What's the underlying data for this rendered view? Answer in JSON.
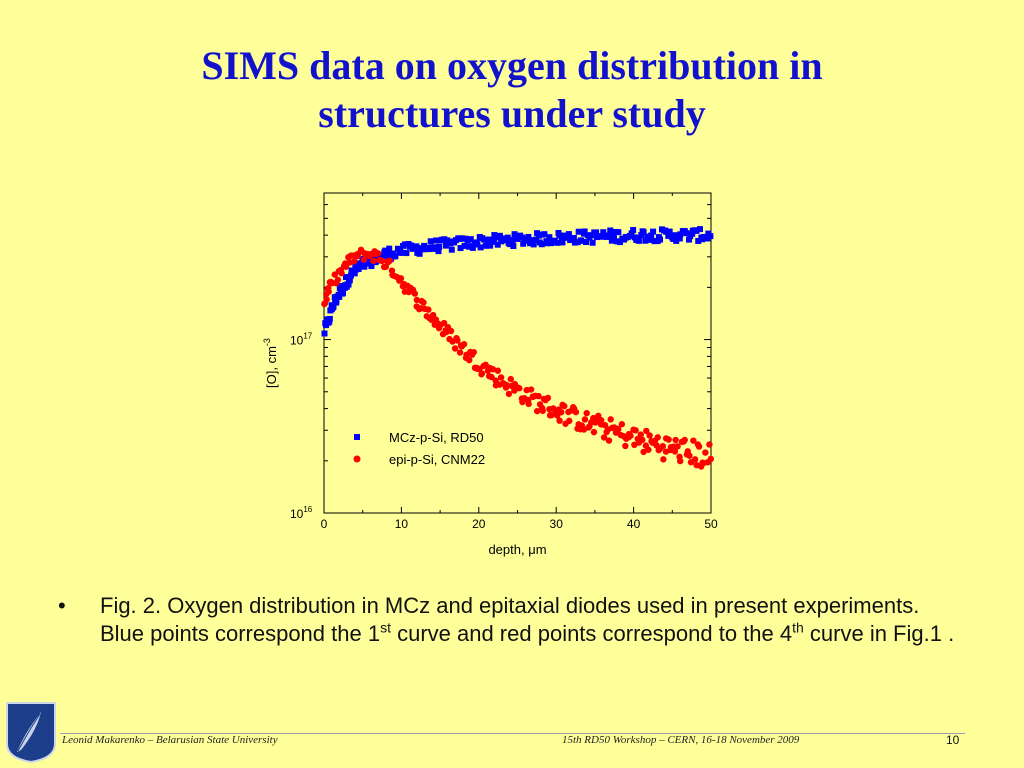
{
  "slide": {
    "title_line1": "SIMS data on oxygen distribution in",
    "title_line2": "structures under study",
    "bullet_symbol": "•",
    "bullet_parts": {
      "p1": "Fig. 2. Oxygen distribution in MCz and epitaxial diodes used in present experiments. Blue points correspond the 1",
      "sup1": "st",
      "p2": " curve and red points correspond to the 4",
      "sup2": "th",
      "p3": " curve in Fig.1 ."
    },
    "footer_left": "Leonid Makarenko – Belarusian State University",
    "footer_center": "15th RD50 Workshop – CERN, 16-18 November 2009",
    "page_number": "10"
  },
  "colors": {
    "background": "#ffff99",
    "title": "#1212cc",
    "series_blue": "#0000ff",
    "series_red": "#ff0000"
  },
  "chart_data": {
    "type": "scatter",
    "title": "",
    "xlabel": "depth, μm",
    "ylabel": "[O], cm-3",
    "xlim": [
      0,
      50
    ],
    "ylim": [
      1e+16,
      7e+17
    ],
    "y_scale": "log",
    "x_ticks": [
      "0",
      "10",
      "20",
      "30",
      "40",
      "50"
    ],
    "y_tick_labels": [
      {
        "value": 1e+17,
        "base": "10",
        "exp": "17"
      },
      {
        "value": 1e+16,
        "base": "10",
        "exp": "16"
      }
    ],
    "legend_position": "lower-center",
    "series": [
      {
        "name": "MCz-p-Si, RD50",
        "marker": "square",
        "color": "#0000ff",
        "points": [
          [
            0,
            1.1e+17
          ],
          [
            0.5,
            1.25e+17
          ],
          [
            1,
            1.5e+17
          ],
          [
            1.5,
            1.7e+17
          ],
          [
            2,
            1.85e+17
          ],
          [
            2.5,
            2e+17
          ],
          [
            3,
            2.2e+17
          ],
          [
            3.5,
            2.35e+17
          ],
          [
            4,
            2.5e+17
          ],
          [
            4.5,
            2.6e+17
          ],
          [
            5,
            2.7e+17
          ],
          [
            5.5,
            2.8e+17
          ],
          [
            6,
            2.85e+17
          ],
          [
            6.5,
            2.95e+17
          ],
          [
            7,
            3e+17
          ],
          [
            8,
            3.1e+17
          ],
          [
            9,
            3.2e+17
          ],
          [
            10,
            3.25e+17
          ],
          [
            11,
            3.3e+17
          ],
          [
            12,
            3.35e+17
          ],
          [
            13,
            3.4e+17
          ],
          [
            14,
            3.45e+17
          ],
          [
            15,
            3.5e+17
          ],
          [
            16,
            3.5e+17
          ],
          [
            17,
            3.55e+17
          ],
          [
            18,
            3.6e+17
          ],
          [
            19,
            3.6e+17
          ],
          [
            20,
            3.65e+17
          ],
          [
            21,
            3.7e+17
          ],
          [
            22,
            3.7e+17
          ],
          [
            23,
            3.7e+17
          ],
          [
            24,
            3.75e+17
          ],
          [
            25,
            3.75e+17
          ],
          [
            26,
            3.8e+17
          ],
          [
            27,
            3.8e+17
          ],
          [
            28,
            3.8e+17
          ],
          [
            29,
            3.85e+17
          ],
          [
            30,
            3.85e+17
          ],
          [
            31,
            3.85e+17
          ],
          [
            32,
            3.9e+17
          ],
          [
            33,
            3.9e+17
          ],
          [
            34,
            3.9e+17
          ],
          [
            35,
            3.9e+17
          ],
          [
            36,
            3.95e+17
          ],
          [
            37,
            3.95e+17
          ],
          [
            38,
            3.95e+17
          ],
          [
            39,
            3.95e+17
          ],
          [
            40,
            4e+17
          ],
          [
            41,
            4e+17
          ],
          [
            42,
            4e+17
          ],
          [
            43,
            4e+17
          ],
          [
            44,
            4e+17
          ],
          [
            45,
            4e+17
          ],
          [
            46,
            4e+17
          ],
          [
            47,
            4e+17
          ],
          [
            48,
            4e+17
          ],
          [
            49,
            4e+17
          ],
          [
            50,
            4e+17
          ]
        ]
      },
      {
        "name": "epi-p-Si, CNM22",
        "marker": "circle",
        "color": "#ff0000",
        "points": [
          [
            0,
            1.6e+17
          ],
          [
            0.5,
            1.9e+17
          ],
          [
            1,
            2.1e+17
          ],
          [
            2,
            2.4e+17
          ],
          [
            3,
            2.75e+17
          ],
          [
            4,
            3e+17
          ],
          [
            5,
            3.1e+17
          ],
          [
            6,
            3.1e+17
          ],
          [
            7,
            3e+17
          ],
          [
            8,
            2.75e+17
          ],
          [
            9,
            2.5e+17
          ],
          [
            10,
            2.2e+17
          ],
          [
            11,
            1.9e+17
          ],
          [
            12,
            1.7e+17
          ],
          [
            13,
            1.5e+17
          ],
          [
            14,
            1.35e+17
          ],
          [
            15,
            1.2e+17
          ],
          [
            16,
            1.08e+17
          ],
          [
            17,
            9.7e+16
          ],
          [
            18,
            8.8e+16
          ],
          [
            19,
            8e+16
          ],
          [
            20,
            7.3e+16
          ],
          [
            21,
            6.7e+16
          ],
          [
            22,
            6.2e+16
          ],
          [
            23,
            5.8e+16
          ],
          [
            24,
            5.4e+16
          ],
          [
            25,
            5.1e+16
          ],
          [
            26,
            4.8e+16
          ],
          [
            27,
            4.5e+16
          ],
          [
            28,
            4.3e+16
          ],
          [
            29,
            4.1e+16
          ],
          [
            30,
            3.9e+16
          ],
          [
            31,
            3.75e+16
          ],
          [
            32,
            3.6e+16
          ],
          [
            33,
            3.45e+16
          ],
          [
            34,
            3.3e+16
          ],
          [
            35,
            3.2e+16
          ],
          [
            36,
            3.1e+16
          ],
          [
            37,
            3e+16
          ],
          [
            38,
            2.9e+16
          ],
          [
            39,
            2.8e+16
          ],
          [
            40,
            2.7e+16
          ],
          [
            41,
            2.6e+16
          ],
          [
            42,
            2.55e+16
          ],
          [
            43,
            2.5e+16
          ],
          [
            44,
            2.4e+16
          ],
          [
            45,
            2.35e+16
          ],
          [
            46,
            2.3e+16
          ],
          [
            47,
            2.25e+16
          ],
          [
            48,
            2.2e+16
          ],
          [
            49,
            2.15e+16
          ],
          [
            50,
            2.1e+16
          ]
        ]
      }
    ]
  }
}
